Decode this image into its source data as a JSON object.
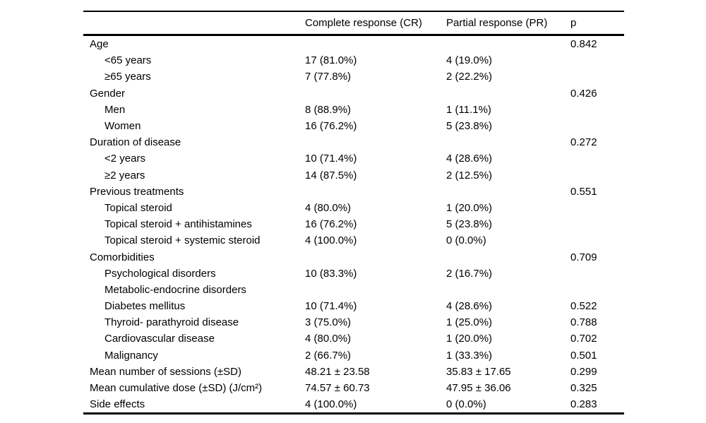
{
  "table": {
    "columns": [
      "",
      "Complete response (CR)",
      "Partial response (PR)",
      "p"
    ],
    "rows": [
      {
        "label": "Age",
        "indent": false,
        "cr": "",
        "pr": "",
        "p": "0.842"
      },
      {
        "label": "<65 years",
        "indent": true,
        "cr": "17 (81.0%)",
        "pr": "4 (19.0%)",
        "p": ""
      },
      {
        "label": "≥65 years",
        "indent": true,
        "cr": "7 (77.8%)",
        "pr": "2 (22.2%)",
        "p": ""
      },
      {
        "label": "Gender",
        "indent": false,
        "cr": "",
        "pr": "",
        "p": "0.426"
      },
      {
        "label": "Men",
        "indent": true,
        "cr": "8 (88.9%)",
        "pr": "1 (11.1%)",
        "p": ""
      },
      {
        "label": "Women",
        "indent": true,
        "cr": "16 (76.2%)",
        "pr": "5 (23.8%)",
        "p": ""
      },
      {
        "label": "Duration of disease",
        "indent": false,
        "cr": "",
        "pr": "",
        "p": "0.272"
      },
      {
        "label": "<2 years",
        "indent": true,
        "cr": "10 (71.4%)",
        "pr": "4 (28.6%)",
        "p": ""
      },
      {
        "label": "≥2 years",
        "indent": true,
        "cr": "14 (87.5%)",
        "pr": "2 (12.5%)",
        "p": ""
      },
      {
        "label": "Previous treatments",
        "indent": false,
        "cr": "",
        "pr": "",
        "p": "0.551"
      },
      {
        "label": "Topical steroid",
        "indent": true,
        "cr": "4 (80.0%)",
        "pr": "1 (20.0%)",
        "p": ""
      },
      {
        "label": "Topical steroid + antihistamines",
        "indent": true,
        "cr": "16 (76.2%)",
        "pr": "5 (23.8%)",
        "p": ""
      },
      {
        "label": "Topical steroid + systemic steroid",
        "indent": true,
        "cr": "4 (100.0%)",
        "pr": "0 (0.0%)",
        "p": ""
      },
      {
        "label": "Comorbidities",
        "indent": false,
        "cr": "",
        "pr": "",
        "p": "0.709"
      },
      {
        "label": "Psychological disorders",
        "indent": true,
        "cr": "10 (83.3%)",
        "pr": "2 (16.7%)",
        "p": ""
      },
      {
        "label": "Metabolic-endocrine disorders",
        "indent": true,
        "cr": "",
        "pr": "",
        "p": ""
      },
      {
        "label": "Diabetes mellitus",
        "indent": true,
        "cr": "10 (71.4%)",
        "pr": "4 (28.6%)",
        "p": "0.522"
      },
      {
        "label": "Thyroid- parathyroid disease",
        "indent": true,
        "cr": "3 (75.0%)",
        "pr": "1 (25.0%)",
        "p": "0.788"
      },
      {
        "label": "Cardiovascular disease",
        "indent": true,
        "cr": "4 (80.0%)",
        "pr": "1 (20.0%)",
        "p": "0.702"
      },
      {
        "label": "Malignancy",
        "indent": true,
        "cr": "2 (66.7%)",
        "pr": "1 (33.3%)",
        "p": "0.501"
      },
      {
        "label": "Mean number of sessions (±SD)",
        "indent": false,
        "cr": "48.21 ± 23.58",
        "pr": "35.83 ± 17.65",
        "p": "0.299"
      },
      {
        "label": "Mean cumulative dose (±SD) (J/cm²)",
        "indent": false,
        "cr": "74.57 ± 60.73",
        "pr": "47.95 ± 36.06",
        "p": "0.325"
      },
      {
        "label": "Side effects",
        "indent": false,
        "cr": "4 (100.0%)",
        "pr": "0 (0.0%)",
        "p": "0.283"
      }
    ]
  }
}
